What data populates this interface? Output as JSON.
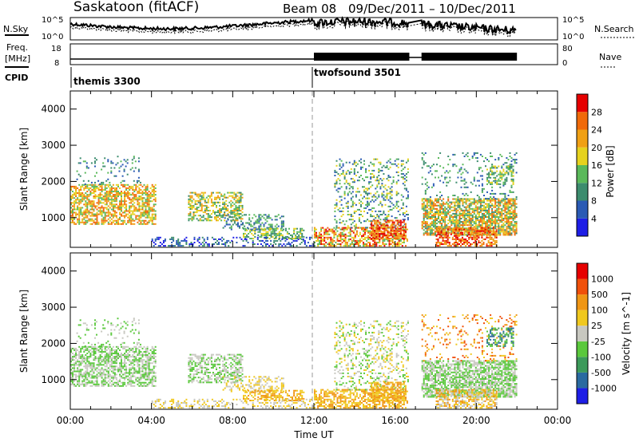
{
  "header": {
    "station": "Saskatoon (fitACF)",
    "beam": "Beam 08",
    "date_range": "09/Dec/2011 – 10/Dec/2011"
  },
  "top_panels": {
    "nsky_label": "N.Sky",
    "nsky_ticks_left": [
      "10^5",
      "10^0"
    ],
    "nsky_ticks_right": [
      "10^5",
      "10^0"
    ],
    "nsearch_label": "N.Search",
    "freq_label_1": "Freq.",
    "freq_label_2": "[MHz]",
    "freq_ticks_left": [
      "18",
      "8"
    ],
    "freq_ticks_right": [
      "80",
      "0"
    ],
    "nave_label": "Nave",
    "cpid_label": "CPID",
    "cpid_modes": [
      {
        "name": "themis 3300",
        "start_hour": 0
      },
      {
        "name": "twofsound 3501",
        "start_hour": 12
      }
    ]
  },
  "chart_data": [
    {
      "type": "heatmap",
      "ylabel": "Slant Range [km]",
      "xlabel": "",
      "x_range_hours": [
        0,
        24
      ],
      "ylim": [
        180,
        4500
      ],
      "y_ticks": [
        1000,
        2000,
        3000,
        4000
      ],
      "colorbar": {
        "label": "Power [dB]",
        "ticks": [
          "4",
          "8",
          "12",
          "16",
          "20",
          "24",
          "28"
        ],
        "colors": [
          "#1e1ee6",
          "#2a5ab4",
          "#3c8c6e",
          "#5ab95a",
          "#e6d21e",
          "#f0a014",
          "#f06a0a",
          "#e60000"
        ]
      },
      "data_gaps_hours": [
        [
          16.7,
          17.3
        ],
        [
          22.0,
          24.0
        ]
      ]
    },
    {
      "type": "heatmap",
      "ylabel": "Slant Range [km]",
      "xlabel": "Time UT",
      "x_range_hours": [
        0,
        24
      ],
      "x_tick_labels": [
        "00:00",
        "04:00",
        "08:00",
        "12:00",
        "16:00",
        "20:00",
        "00:00"
      ],
      "ylim": [
        180,
        4500
      ],
      "y_ticks": [
        1000,
        2000,
        3000,
        4000
      ],
      "colorbar": {
        "label": "Velocity [m s^-1]",
        "ticks": [
          "1000",
          "500",
          "100",
          "25",
          "-25",
          "-100",
          "-500",
          "-1000"
        ],
        "colors": [
          "#1e1ee6",
          "#2a6aa0",
          "#3c9a5a",
          "#5ac83c",
          "#c8c8c0",
          "#f0c81e",
          "#f09614",
          "#f0500a",
          "#e60000"
        ]
      },
      "data_gaps_hours": [
        [
          16.7,
          17.3
        ],
        [
          22.0,
          24.0
        ]
      ]
    }
  ]
}
